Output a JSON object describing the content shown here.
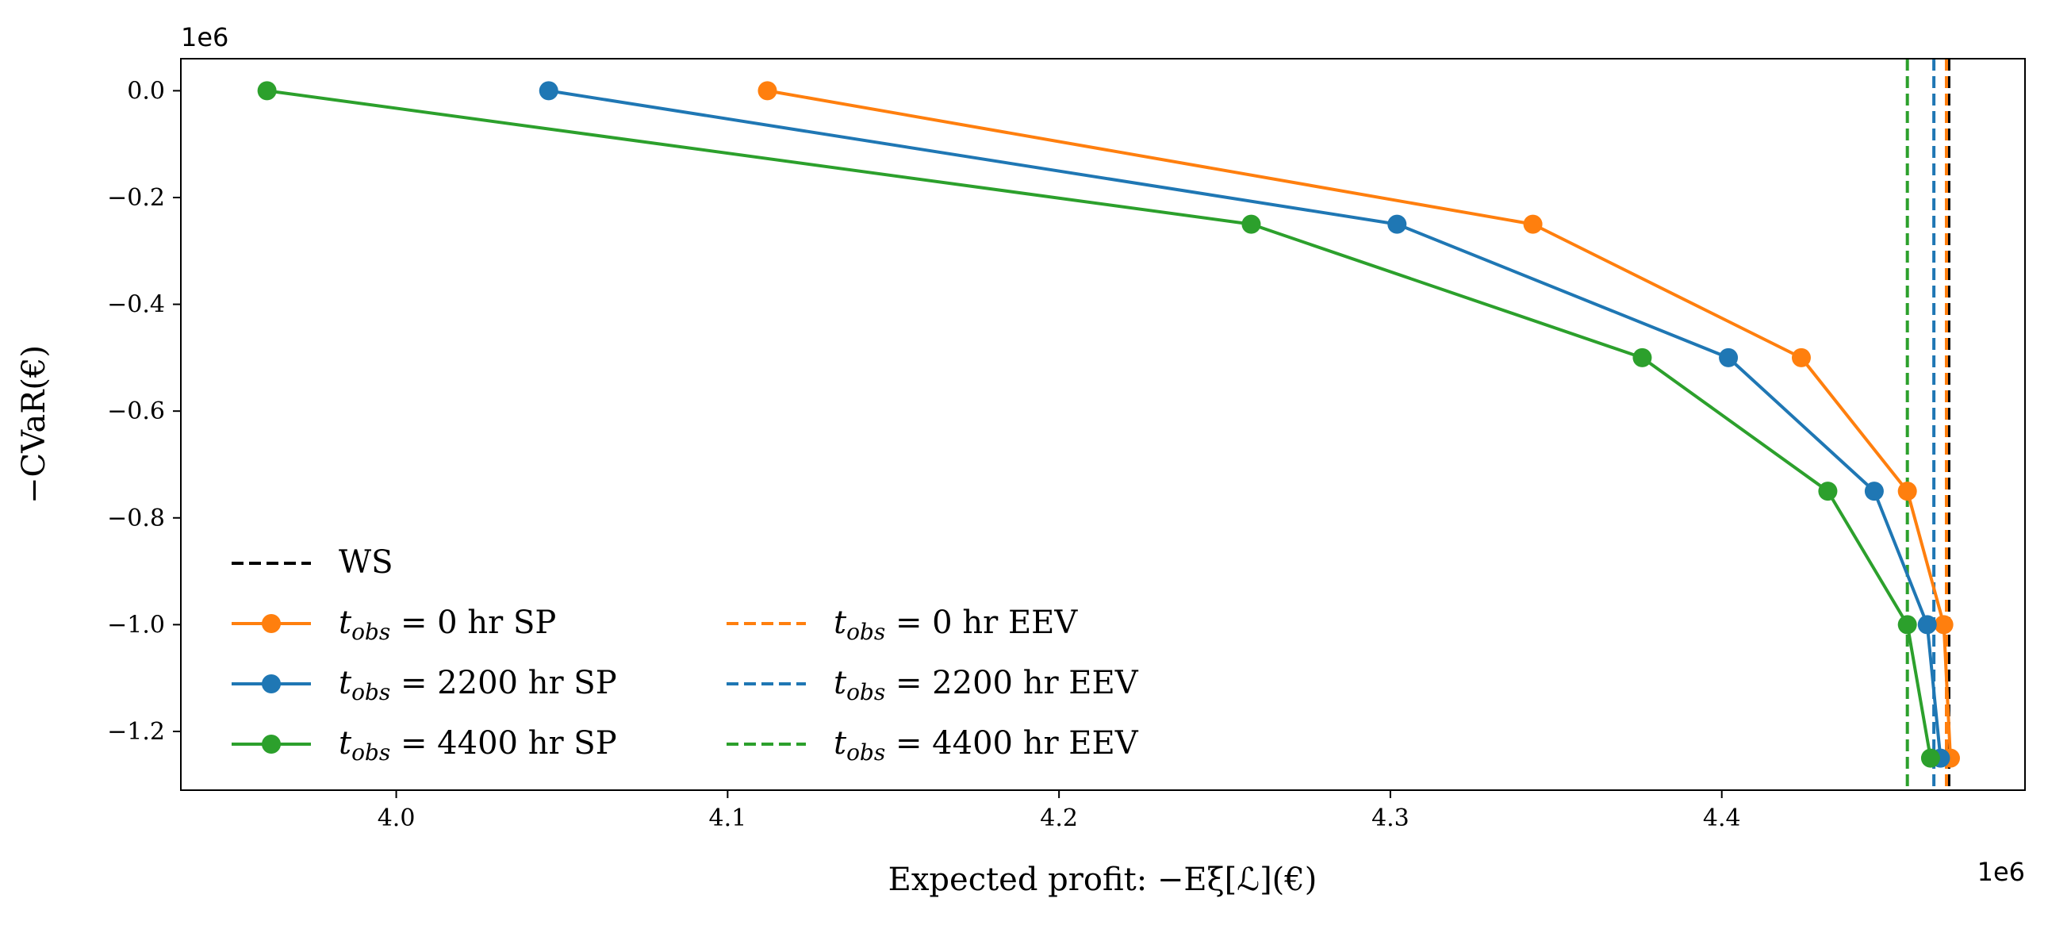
{
  "chart_data": {
    "type": "line",
    "title": "",
    "xlabel": "Expected profit: −Eξ[ℒ](€)",
    "ylabel": "−CVaR(€)",
    "x_offset_label": "1e6",
    "y_offset_label": "1e6",
    "x_scale": 1000000,
    "y_scale": 1000000,
    "xlim": [
      3.935,
      4.4915
    ],
    "ylim": [
      -1.31,
      0.06
    ],
    "xticks": [
      4.0,
      4.1,
      4.2,
      4.3,
      4.4
    ],
    "xtick_labels": [
      "4.0",
      "4.1",
      "4.2",
      "4.3",
      "4.4"
    ],
    "yticks": [
      0.0,
      -0.2,
      -0.4,
      -0.6,
      -0.8,
      -1.0,
      -1.2
    ],
    "ytick_labels": [
      "0.0",
      "−0.2",
      "−0.4",
      "−0.6",
      "−0.8",
      "−1.0",
      "−1.2"
    ],
    "grid": false,
    "legend_position": "lower-left",
    "series": [
      {
        "name": "t_obs = 0 hr SP",
        "color": "#ff7f0e",
        "style": "solid-marker",
        "points": [
          {
            "x": 4.112,
            "y": 0.0
          },
          {
            "x": 4.343,
            "y": -0.25
          },
          {
            "x": 4.424,
            "y": -0.5
          },
          {
            "x": 4.456,
            "y": -0.75
          },
          {
            "x": 4.467,
            "y": -1.0
          },
          {
            "x": 4.469,
            "y": -1.25
          }
        ]
      },
      {
        "name": "t_obs = 2200 hr SP",
        "color": "#1f77b4",
        "style": "solid-marker",
        "points": [
          {
            "x": 4.046,
            "y": 0.0
          },
          {
            "x": 4.302,
            "y": -0.25
          },
          {
            "x": 4.402,
            "y": -0.5
          },
          {
            "x": 4.446,
            "y": -0.75
          },
          {
            "x": 4.462,
            "y": -1.0
          },
          {
            "x": 4.466,
            "y": -1.25
          }
        ]
      },
      {
        "name": "t_obs = 4400 hr SP",
        "color": "#2ca02c",
        "style": "solid-marker",
        "points": [
          {
            "x": 3.961,
            "y": 0.0
          },
          {
            "x": 4.258,
            "y": -0.25
          },
          {
            "x": 4.376,
            "y": -0.5
          },
          {
            "x": 4.432,
            "y": -0.75
          },
          {
            "x": 4.456,
            "y": -1.0
          },
          {
            "x": 4.463,
            "y": -1.25
          }
        ]
      }
    ],
    "vlines": [
      {
        "name": "WS",
        "color": "#000000",
        "x": 4.4685
      },
      {
        "name": "t_obs = 0 hr EEV",
        "color": "#ff7f0e",
        "x": 4.4678
      },
      {
        "name": "t_obs = 2200 hr EEV",
        "color": "#1f77b4",
        "x": 4.464
      },
      {
        "name": "t_obs = 4400 hr EEV",
        "color": "#2ca02c",
        "x": 4.456
      }
    ],
    "legend": [
      {
        "label": "WS",
        "color": "#000000",
        "kind": "dashed"
      },
      {
        "label": "t_obs = 0 hr SP",
        "color": "#ff7f0e",
        "kind": "marker"
      },
      {
        "label": "t_obs = 2200 hr SP",
        "color": "#1f77b4",
        "kind": "marker"
      },
      {
        "label": "t_obs = 4400 hr SP",
        "color": "#2ca02c",
        "kind": "marker"
      },
      {
        "label": "t_obs = 0 hr EEV",
        "color": "#ff7f0e",
        "kind": "dashed"
      },
      {
        "label": "t_obs = 2200 hr EEV",
        "color": "#1f77b4",
        "kind": "dashed"
      },
      {
        "label": "t_obs = 4400 hr EEV",
        "color": "#2ca02c",
        "kind": "dashed"
      }
    ]
  }
}
